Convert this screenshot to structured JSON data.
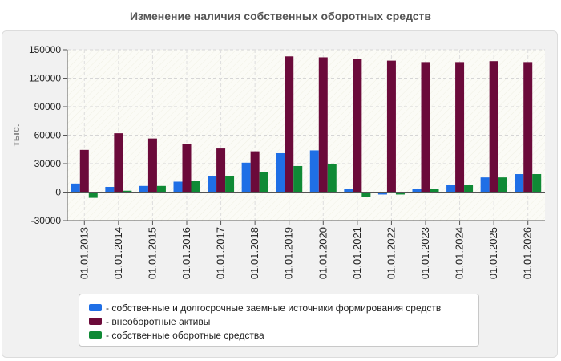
{
  "chart_data": {
    "type": "bar",
    "title": "Изменение наличия собственных оборотных средств",
    "ylabel": "тыс.",
    "xlabel": "",
    "ylim": [
      -30000,
      150000
    ],
    "yticks": [
      150000,
      120000,
      90000,
      60000,
      30000,
      0,
      -30000
    ],
    "grid": true,
    "legend_position": "bottom",
    "categories": [
      "01.01.2013",
      "01.01.2014",
      "01.01.2015",
      "01.01.2016",
      "01.01.2017",
      "01.01.2018",
      "01.01.2019",
      "01.01.2020",
      "01.01.2021",
      "01.01.2022",
      "01.01.2023",
      "01.01.2024",
      "01.01.2025",
      "01.01.2026"
    ],
    "series": [
      {
        "name": "собственные и долгосрочные заемные источники формирования средств",
        "color": "#1f6fe6",
        "values": [
          9000,
          5500,
          6500,
          11000,
          17000,
          31000,
          41000,
          44000,
          3500,
          -2500,
          3000,
          8000,
          15500,
          19000
        ]
      },
      {
        "name": "внеоборотные активы",
        "color": "#6b0a3a",
        "values": [
          44500,
          62000,
          56500,
          51000,
          46000,
          43000,
          143000,
          142000,
          140500,
          138500,
          137000,
          137000,
          138000,
          137000
        ]
      },
      {
        "name": "собственные оборотные средства",
        "color": "#0f8a35",
        "values": [
          -6000,
          1500,
          6500,
          11500,
          17000,
          21000,
          27500,
          29500,
          -5000,
          -2500,
          3000,
          8000,
          15500,
          19000
        ]
      }
    ]
  },
  "legend": {
    "items": [
      {
        "label": "- собственные и долгосрочные заемные источники формирования средств",
        "color": "#1f6fe6"
      },
      {
        "label": "- внеоборотные активы",
        "color": "#6b0a3a"
      },
      {
        "label": "- собственные оборотные средства",
        "color": "#0f8a35"
      }
    ]
  }
}
